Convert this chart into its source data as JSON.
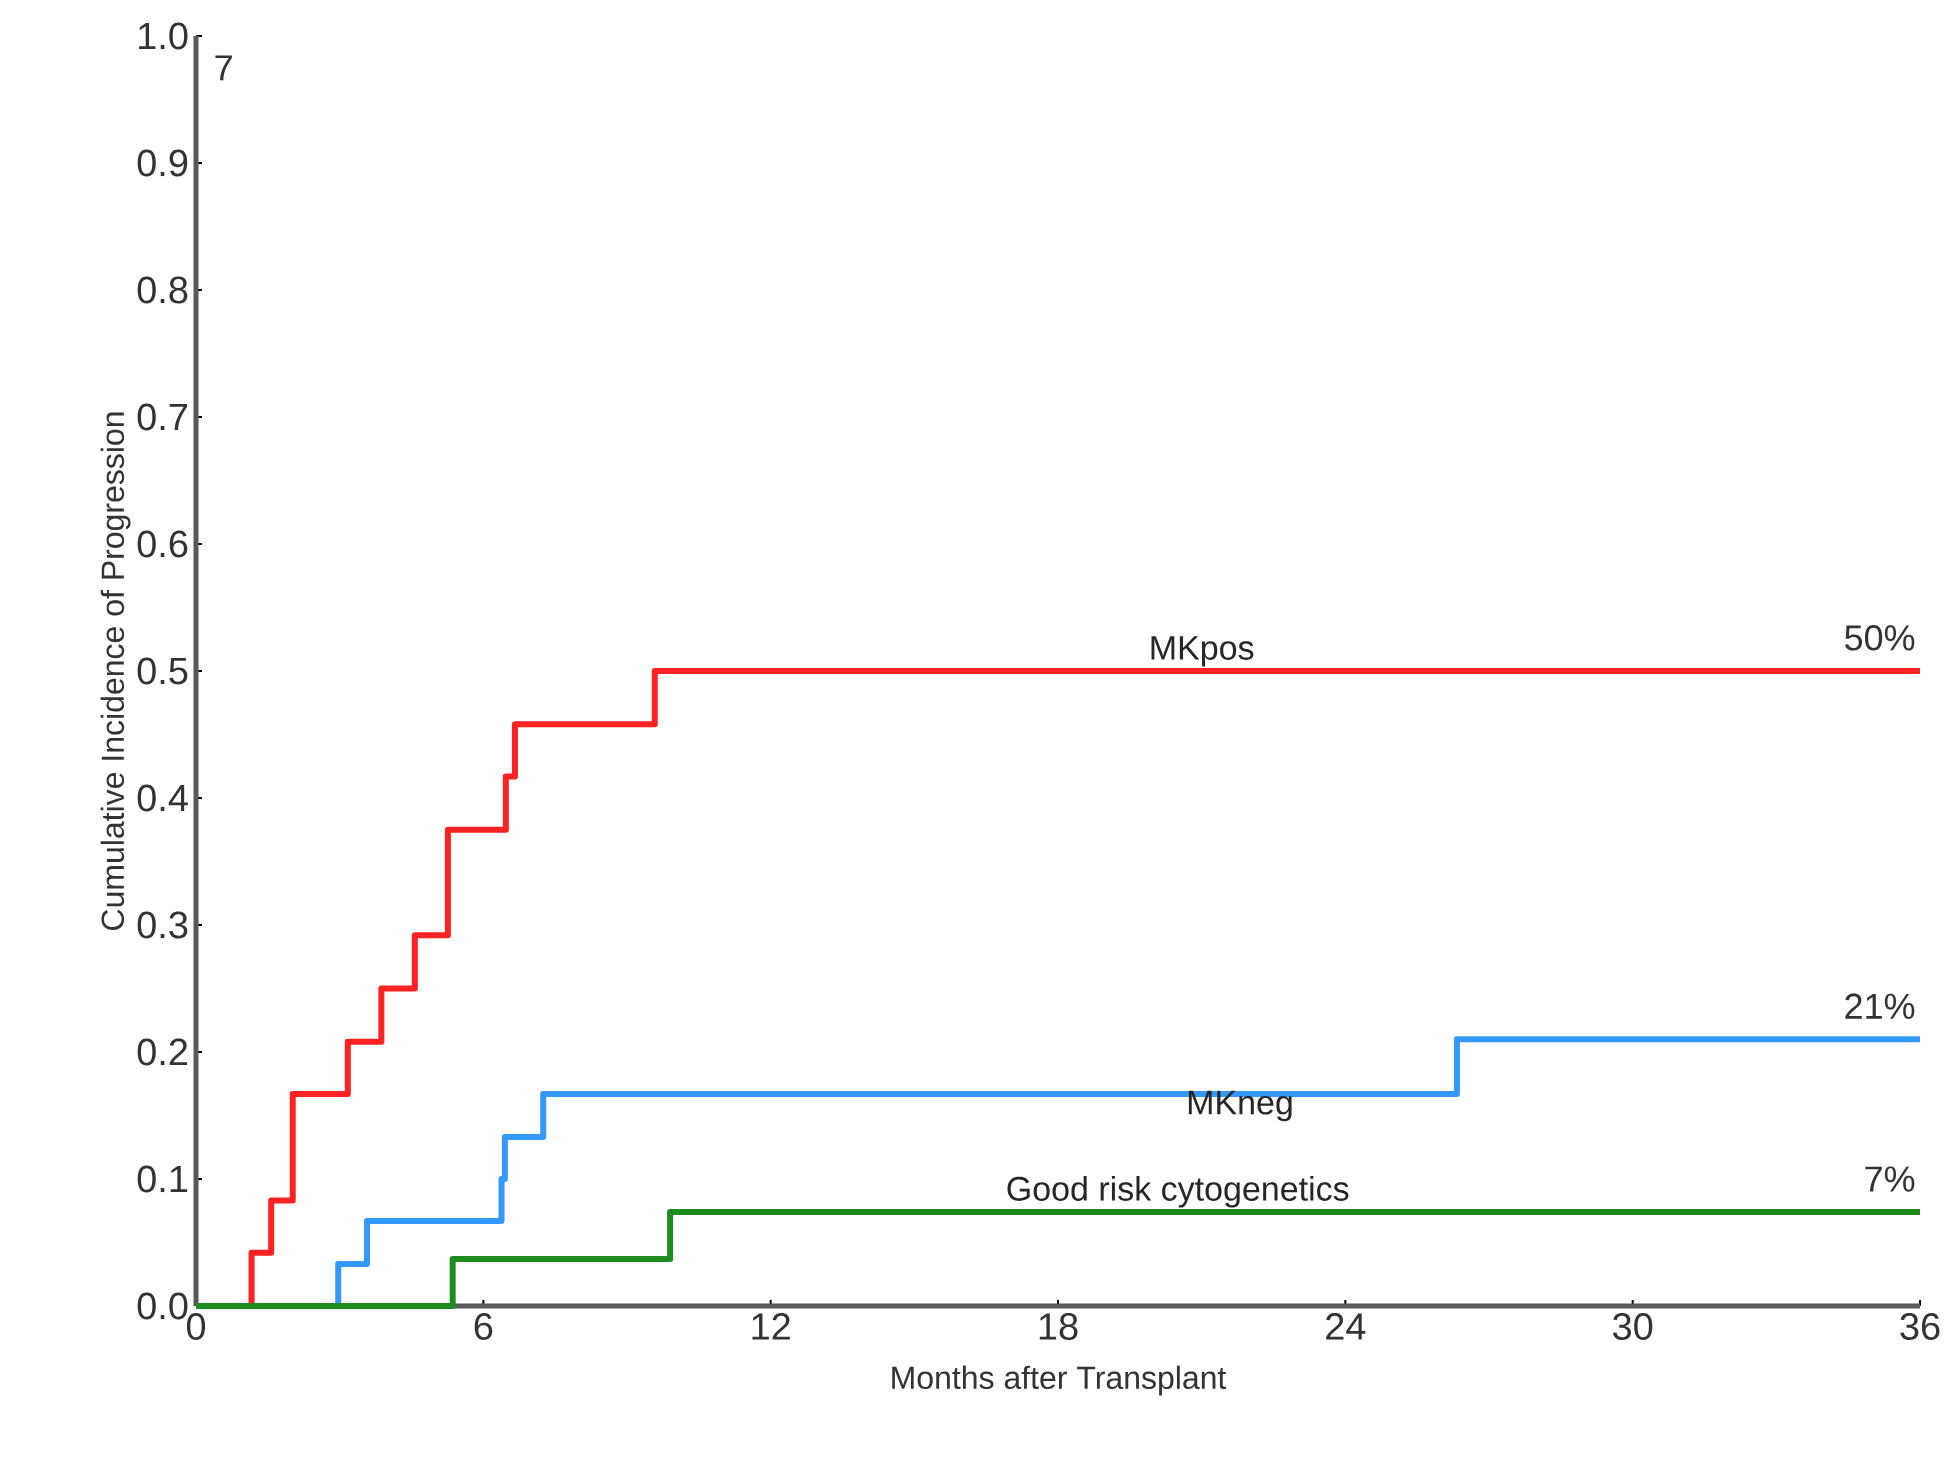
{
  "chart_data": {
    "type": "step",
    "xlabel": "Months after Transplant",
    "ylabel": "Cumulative Incidence of Progression",
    "xlim": [
      0,
      36
    ],
    "ylim": [
      0,
      1
    ],
    "xticks": [
      0,
      6,
      12,
      18,
      24,
      30,
      36
    ],
    "yticks": [
      {
        "value": 0,
        "label": "0.0"
      },
      0.1,
      0.2,
      0.3,
      0.4,
      0.5,
      0.6,
      0.7,
      0.8,
      0.9,
      {
        "value": 1,
        "label": "1.0"
      }
    ],
    "series": [
      {
        "name": "MKpos",
        "color": "#ff2222",
        "x": [
          0,
          1.16,
          1.57,
          2.02,
          3.17,
          3.87,
          4.57,
          5.26,
          6.47,
          6.66,
          9.58,
          36
        ],
        "values": [
          0,
          0.042,
          0.083,
          0.167,
          0.208,
          0.25,
          0.292,
          0.375,
          0.417,
          0.458,
          0.5,
          0.5
        ],
        "value_labels": [
          null,
          null,
          null,
          null,
          null,
          null,
          null,
          null,
          null,
          null,
          null,
          "50%"
        ]
      },
      {
        "name": "MKneg",
        "color": "#3399ff",
        "x": [
          0,
          2.97,
          3.57,
          6.38,
          6.45,
          7.25,
          26.33,
          36
        ],
        "values": [
          0,
          0.033,
          0.067,
          0.1,
          0.133,
          0.167,
          0.21,
          0.21
        ],
        "value_labels": [
          null,
          null,
          null,
          null,
          null,
          null,
          null,
          "21%"
        ]
      },
      {
        "name": "Good risk cytogenetics",
        "color": "#1e8c1e",
        "x": [
          0,
          5.36,
          9.9,
          36
        ],
        "values": [
          0,
          0.037,
          0.074,
          0.074
        ],
        "value_labels": [
          null,
          null,
          null,
          "7%"
        ]
      }
    ],
    "annotations": [
      "7"
    ]
  }
}
